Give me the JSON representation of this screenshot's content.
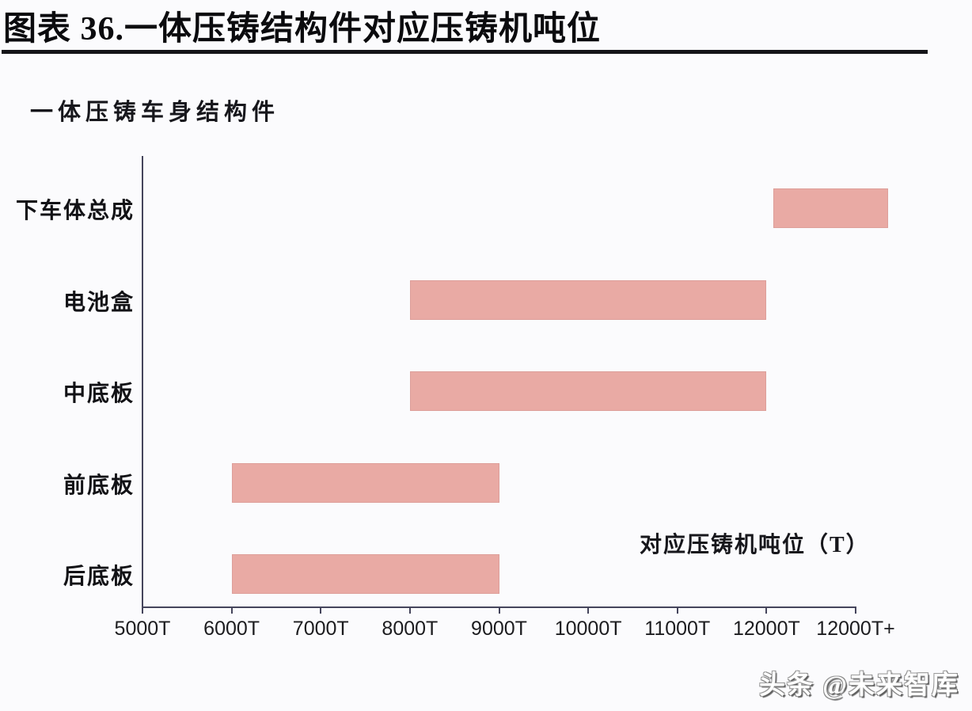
{
  "figure": {
    "title": "图表 36.一体压铸结构件对应压铸机吨位",
    "axis_title": "一体压铸车身结构件",
    "x_annotation": "对应压铸机吨位（T）",
    "watermark": "头条 @未来智库"
  },
  "colors": {
    "background": "#fbfbfd",
    "bar": "#e9aaa4",
    "axis": "#45455c",
    "title_rule": "#141418",
    "text": "#101010"
  },
  "chart_data": {
    "type": "bar",
    "subtype": "horizontal-range-bars",
    "title": "图表 36.一体压铸结构件对应压铸机吨位",
    "ylabel": "一体压铸车身结构件",
    "xlabel": "对应压铸机吨位（T）",
    "grid": false,
    "legend": "none",
    "xlim": [
      5000,
      13000
    ],
    "x_tick_values": [
      5000,
      6000,
      7000,
      8000,
      9000,
      10000,
      11000,
      12000,
      13000
    ],
    "x_tick_labels": [
      "5000T",
      "6000T",
      "7000T",
      "8000T",
      "9000T",
      "10000T",
      "11000T",
      "12000T",
      "12000T+"
    ],
    "axis_note": "12000T+ is plotted one division after 12000T; linear spacing of 1000T per division",
    "categories": [
      "下车体总成",
      "电池盒",
      "中底板",
      "前底板",
      "后底板"
    ],
    "bar_color": "#e9aaa4",
    "bars": [
      {
        "label": "下车体总成",
        "start": 12080,
        "end": 13360,
        "range_label": "12000T ~ 12000T+（超出轴末端）"
      },
      {
        "label": "电池盒",
        "start": 8000,
        "end": 12000,
        "range_label": "8000T ~ 12000T"
      },
      {
        "label": "中底板",
        "start": 8000,
        "end": 12000,
        "range_label": "8000T ~ 12000T"
      },
      {
        "label": "前底板",
        "start": 6000,
        "end": 9000,
        "range_label": "6000T ~ 9000T"
      },
      {
        "label": "后底板",
        "start": 6000,
        "end": 9000,
        "range_label": "6000T ~ 9000T"
      }
    ]
  }
}
